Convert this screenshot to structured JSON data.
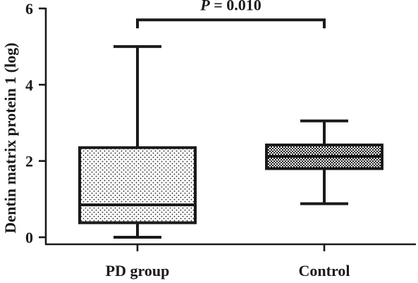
{
  "chart_data": {
    "type": "box",
    "ylabel": "Dentin matrix protein 1 (log)",
    "ylim": [
      0,
      6
    ],
    "yticks": [
      0,
      2,
      4,
      6
    ],
    "categories": [
      "PD group",
      "Control"
    ],
    "boxes": [
      {
        "category": "PD group",
        "min": 0.0,
        "q1": 0.38,
        "median": 0.85,
        "q3": 2.35,
        "max": 5.0,
        "pattern": "dots"
      },
      {
        "category": "Control",
        "min": 0.88,
        "q1": 1.8,
        "median": 2.12,
        "q3": 2.42,
        "max": 3.05,
        "pattern": "checker"
      }
    ],
    "annotation": {
      "text": "P = 0.010",
      "italic_part": "P",
      "rest": " = 0.010"
    },
    "colors": {
      "ink": "#1a1a1a",
      "background": "#ffffff"
    }
  }
}
